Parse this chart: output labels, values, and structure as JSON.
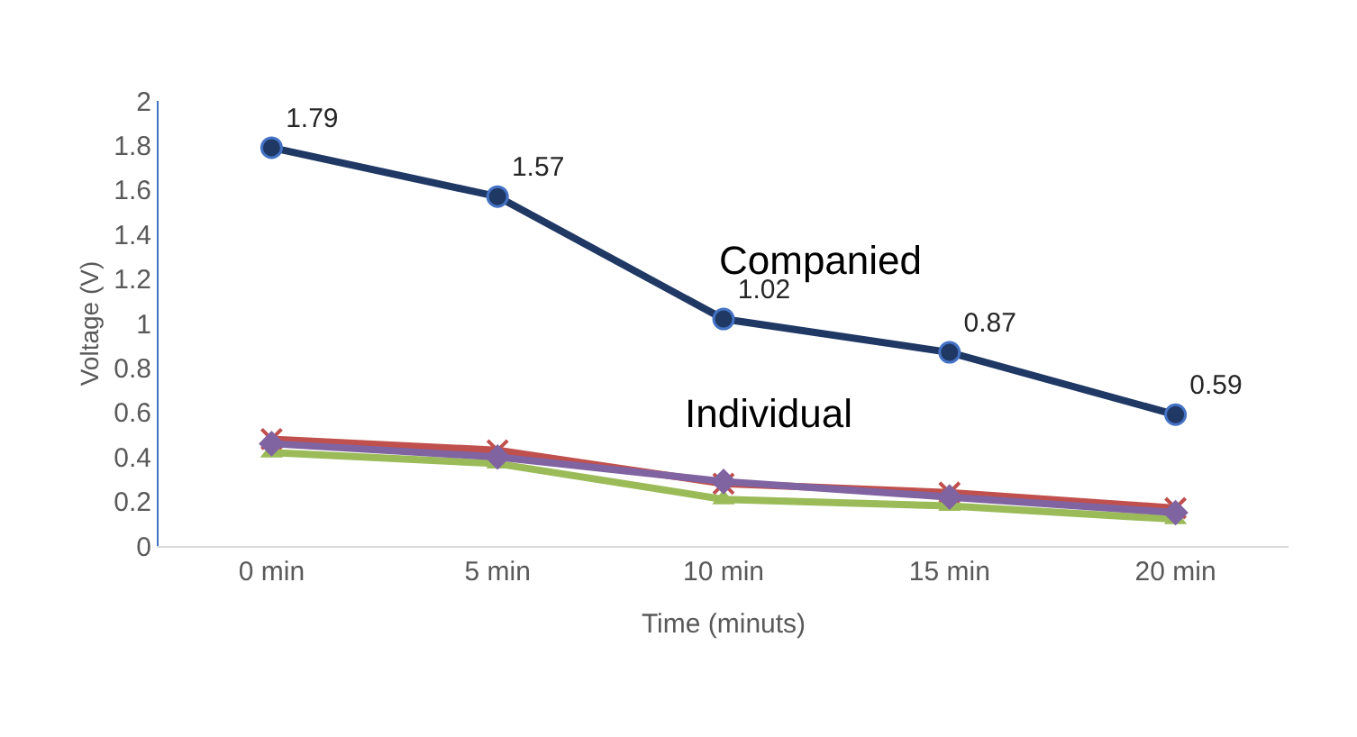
{
  "chart_data": {
    "type": "line",
    "xlabel": "Time (minuts)",
    "ylabel": "Voltage (V)",
    "categories": [
      "0 min",
      "5 min",
      "10 min",
      "15 min",
      "20 min"
    ],
    "ylim": [
      0,
      2
    ],
    "yticks": [
      0,
      0.2,
      0.4,
      0.6,
      0.8,
      1,
      1.2,
      1.4,
      1.6,
      1.8,
      2
    ],
    "grid": false,
    "series": [
      {
        "color": "#1f3864",
        "marker": "circle",
        "values": [
          1.79,
          1.57,
          1.02,
          0.87,
          0.59
        ],
        "value_labels": [
          "1.79",
          "1.57",
          "1.02",
          "0.87",
          "0.59"
        ]
      },
      {
        "color": "#c0504d",
        "marker": "cross",
        "values": [
          0.48,
          0.43,
          0.28,
          0.24,
          0.17
        ]
      },
      {
        "color": "#9bbb59",
        "marker": "triangle",
        "values": [
          0.42,
          0.37,
          0.21,
          0.18,
          0.12
        ]
      },
      {
        "color": "#8064a2",
        "marker": "diamond",
        "values": [
          0.46,
          0.4,
          0.29,
          0.22,
          0.15
        ]
      }
    ],
    "annotations": [
      "Companied",
      "Individual"
    ]
  }
}
